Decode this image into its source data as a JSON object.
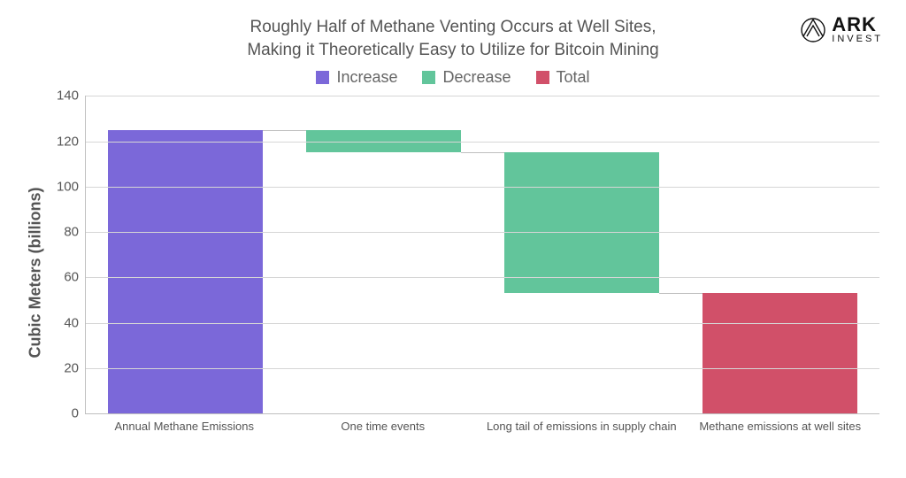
{
  "title_line1": "Roughly Half of Methane Venting Occurs at Well Sites,",
  "title_line2": "Making it Theoretically Easy to Utilize for Bitcoin Mining",
  "y_axis_label": "Cubic Meters (billions)",
  "logo": {
    "main": "ARK",
    "sub": "INVEST"
  },
  "legend": [
    {
      "label": "Increase",
      "color": "#7b68d9"
    },
    {
      "label": "Decrease",
      "color": "#62c59b"
    },
    {
      "label": "Total",
      "color": "#d15069"
    }
  ],
  "chart": {
    "type": "waterfall-bar",
    "ylim": [
      0,
      140
    ],
    "ytick_step": 20,
    "grid_color": "#d6d6d6",
    "axis_color": "#bfbfbf",
    "connector_color": "#bfbfbf",
    "background_color": "#ffffff",
    "bar_width_pct": 78,
    "title_fontsize": 19,
    "legend_fontsize": 18,
    "y_label_fontsize": 18,
    "tick_fontsize": 15,
    "x_label_fontsize": 13,
    "categories": [
      {
        "label": "Annual Methane Emissions",
        "start": 0,
        "end": 125,
        "color": "#7b68d9",
        "type": "increase"
      },
      {
        "label": "One time events",
        "start": 115,
        "end": 125,
        "color": "#62c59b",
        "type": "decrease"
      },
      {
        "label": "Long tail of emissions in supply chain",
        "start": 53,
        "end": 115,
        "color": "#62c59b",
        "type": "decrease"
      },
      {
        "label": "Methane emissions at well sites",
        "start": 0,
        "end": 53,
        "color": "#d15069",
        "type": "total"
      }
    ]
  }
}
